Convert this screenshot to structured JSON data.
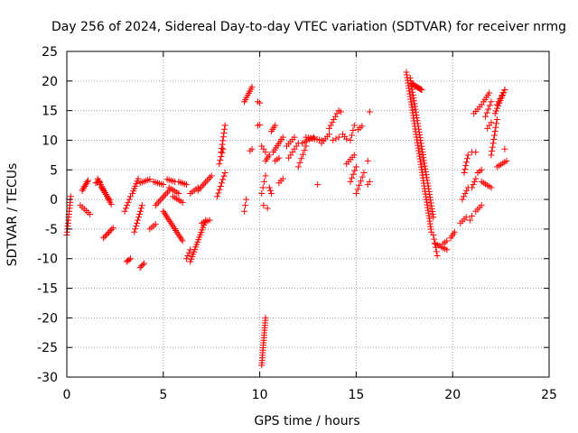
{
  "chart_data": {
    "type": "scatter",
    "title": "Day 256 of 2024, Sidereal Day-to-day VTEC variation (SDTVAR) for receiver nrmg",
    "xlabel": "GPS time / hours",
    "ylabel": "SDTVAR / TECUs",
    "xlim": [
      0,
      25
    ],
    "ylim": [
      -30,
      25
    ],
    "xticks": [
      0,
      5,
      10,
      15,
      20,
      25
    ],
    "yticks": [
      -30,
      -25,
      -20,
      -15,
      -10,
      -5,
      0,
      5,
      10,
      15,
      20,
      25
    ],
    "grid": true,
    "marker": "+",
    "color": "#ff0000",
    "segments": [
      {
        "x0": 0.0,
        "y0": -6.0,
        "x1": 0.2,
        "y1": 0.5,
        "n": 14
      },
      {
        "x0": 0.7,
        "y0": -1.0,
        "x1": 1.2,
        "y1": -2.5,
        "n": 6
      },
      {
        "x0": 0.8,
        "y0": 1.5,
        "x1": 1.1,
        "y1": 3.2,
        "n": 8
      },
      {
        "x0": 1.5,
        "y0": 2.8,
        "x1": 1.7,
        "y1": 3.0,
        "n": 4
      },
      {
        "x0": 1.6,
        "y0": 3.5,
        "x1": 2.3,
        "y1": -0.8,
        "n": 14
      },
      {
        "x0": 1.8,
        "y0": 2.0,
        "x1": 2.2,
        "y1": 0.0,
        "n": 8
      },
      {
        "x0": 1.9,
        "y0": -6.5,
        "x1": 2.4,
        "y1": -4.8,
        "n": 8
      },
      {
        "x0": 3.1,
        "y0": -10.5,
        "x1": 3.3,
        "y1": -10.0,
        "n": 4
      },
      {
        "x0": 3.0,
        "y0": -2.0,
        "x1": 3.3,
        "y1": 0.5,
        "n": 6
      },
      {
        "x0": 3.5,
        "y0": -5.5,
        "x1": 3.9,
        "y1": -1.0,
        "n": 10
      },
      {
        "x0": 3.4,
        "y0": 1.0,
        "x1": 3.7,
        "y1": 3.5,
        "n": 7
      },
      {
        "x0": 3.8,
        "y0": 2.8,
        "x1": 4.3,
        "y1": 3.4,
        "n": 6
      },
      {
        "x0": 3.8,
        "y0": -11.5,
        "x1": 4.0,
        "y1": -10.8,
        "n": 4
      },
      {
        "x0": 4.3,
        "y0": -5.0,
        "x1": 4.6,
        "y1": -4.2,
        "n": 4
      },
      {
        "x0": 4.5,
        "y0": 3.0,
        "x1": 5.0,
        "y1": 2.5,
        "n": 6
      },
      {
        "x0": 4.6,
        "y0": -1.0,
        "x1": 5.3,
        "y1": 1.5,
        "n": 10
      },
      {
        "x0": 5.0,
        "y0": -2.0,
        "x1": 6.0,
        "y1": -7.0,
        "n": 18
      },
      {
        "x0": 5.2,
        "y0": 3.4,
        "x1": 5.6,
        "y1": 3.0,
        "n": 5
      },
      {
        "x0": 5.3,
        "y0": 2.0,
        "x1": 5.8,
        "y1": 1.0,
        "n": 6
      },
      {
        "x0": 5.5,
        "y0": 0.5,
        "x1": 6.0,
        "y1": -0.5,
        "n": 6
      },
      {
        "x0": 5.8,
        "y0": 3.0,
        "x1": 6.2,
        "y1": 2.5,
        "n": 5
      },
      {
        "x0": 6.2,
        "y0": -10.0,
        "x1": 6.4,
        "y1": -8.5,
        "n": 4
      },
      {
        "x0": 6.4,
        "y0": -10.5,
        "x1": 7.2,
        "y1": -3.5,
        "n": 18
      },
      {
        "x0": 6.4,
        "y0": 1.0,
        "x1": 6.8,
        "y1": 2.0,
        "n": 5
      },
      {
        "x0": 6.8,
        "y0": 1.5,
        "x1": 7.5,
        "y1": 4.0,
        "n": 10
      },
      {
        "x0": 7.0,
        "y0": -4.0,
        "x1": 7.4,
        "y1": -3.5,
        "n": 5
      },
      {
        "x0": 7.8,
        "y0": 0.5,
        "x1": 8.2,
        "y1": 4.5,
        "n": 8
      },
      {
        "x0": 7.9,
        "y0": 6.0,
        "x1": 8.1,
        "y1": 8.5,
        "n": 5
      },
      {
        "x0": 8.0,
        "y0": 8.0,
        "x1": 8.2,
        "y1": 12.5,
        "n": 8
      },
      {
        "x0": 9.2,
        "y0": -2.0,
        "x1": 9.3,
        "y1": 0.0,
        "n": 3
      },
      {
        "x0": 9.2,
        "y0": 16.5,
        "x1": 9.6,
        "y1": 19.0,
        "n": 8
      },
      {
        "x0": 9.5,
        "y0": 8.2,
        "x1": 9.6,
        "y1": 8.5,
        "n": 2
      },
      {
        "x0": 9.9,
        "y0": 16.5,
        "x1": 10.0,
        "y1": 16.3,
        "n": 2
      },
      {
        "x0": 9.9,
        "y0": 12.5,
        "x1": 10.0,
        "y1": 12.6,
        "n": 2
      },
      {
        "x0": 10.1,
        "y0": -28.0,
        "x1": 10.3,
        "y1": -20.0,
        "n": 20
      },
      {
        "x0": 10.1,
        "y0": 9.0,
        "x1": 10.3,
        "y1": 8.0,
        "n": 3
      },
      {
        "x0": 10.1,
        "y0": 1.0,
        "x1": 10.3,
        "y1": 4.0,
        "n": 4
      },
      {
        "x0": 10.2,
        "y0": -1.0,
        "x1": 10.4,
        "y1": -1.5,
        "n": 2
      },
      {
        "x0": 10.3,
        "y0": 6.5,
        "x1": 10.5,
        "y1": 7.5,
        "n": 4
      },
      {
        "x0": 10.5,
        "y0": 2.0,
        "x1": 10.6,
        "y1": 1.0,
        "n": 3
      },
      {
        "x0": 10.6,
        "y0": 11.5,
        "x1": 10.8,
        "y1": 12.5,
        "n": 4
      },
      {
        "x0": 10.7,
        "y0": 8.0,
        "x1": 11.2,
        "y1": 10.5,
        "n": 8
      },
      {
        "x0": 10.8,
        "y0": 6.5,
        "x1": 11.0,
        "y1": 7.0,
        "n": 3
      },
      {
        "x0": 11.0,
        "y0": 2.8,
        "x1": 11.2,
        "y1": 3.5,
        "n": 3
      },
      {
        "x0": 11.4,
        "y0": 9.0,
        "x1": 11.8,
        "y1": 10.5,
        "n": 5
      },
      {
        "x0": 11.5,
        "y0": 7.0,
        "x1": 12.0,
        "y1": 9.5,
        "n": 6
      },
      {
        "x0": 12.0,
        "y0": 5.5,
        "x1": 12.4,
        "y1": 9.0,
        "n": 6
      },
      {
        "x0": 12.2,
        "y0": 9.5,
        "x1": 12.8,
        "y1": 10.5,
        "n": 6
      },
      {
        "x0": 12.4,
        "y0": 10.5,
        "x1": 13.2,
        "y1": 10.0,
        "n": 8
      },
      {
        "x0": 13.0,
        "y0": 2.5,
        "x1": 13.1,
        "y1": 2.5,
        "n": 1
      },
      {
        "x0": 13.2,
        "y0": 9.5,
        "x1": 13.6,
        "y1": 11.0,
        "n": 5
      },
      {
        "x0": 13.6,
        "y0": 12.0,
        "x1": 14.0,
        "y1": 14.5,
        "n": 6
      },
      {
        "x0": 13.8,
        "y0": 10.0,
        "x1": 14.1,
        "y1": 10.5,
        "n": 3
      },
      {
        "x0": 14.1,
        "y0": 15.0,
        "x1": 14.2,
        "y1": 14.8,
        "n": 2
      },
      {
        "x0": 14.3,
        "y0": 11.0,
        "x1": 14.5,
        "y1": 10.2,
        "n": 3
      },
      {
        "x0": 14.5,
        "y0": 6.0,
        "x1": 14.9,
        "y1": 7.5,
        "n": 5
      },
      {
        "x0": 14.7,
        "y0": 3.0,
        "x1": 15.0,
        "y1": 5.5,
        "n": 5
      },
      {
        "x0": 14.7,
        "y0": 10.0,
        "x1": 14.9,
        "y1": 12.5,
        "n": 4
      },
      {
        "x0": 15.0,
        "y0": 1.0,
        "x1": 15.4,
        "y1": 4.5,
        "n": 6
      },
      {
        "x0": 15.1,
        "y0": 11.8,
        "x1": 15.3,
        "y1": 12.4,
        "n": 3
      },
      {
        "x0": 15.6,
        "y0": 6.5,
        "x1": 15.7,
        "y1": 6.5,
        "n": 1
      },
      {
        "x0": 15.6,
        "y0": 2.5,
        "x1": 15.7,
        "y1": 3.0,
        "n": 2
      },
      {
        "x0": 15.7,
        "y0": 14.8,
        "x1": 15.8,
        "y1": 14.8,
        "n": 1
      },
      {
        "x0": 17.6,
        "y0": 21.5,
        "x1": 18.9,
        "y1": -5.5,
        "n": 60
      },
      {
        "x0": 17.8,
        "y0": 20.5,
        "x1": 19.0,
        "y1": -3.0,
        "n": 50
      },
      {
        "x0": 17.9,
        "y0": 19.5,
        "x1": 18.4,
        "y1": 18.5,
        "n": 12
      },
      {
        "x0": 19.0,
        "y0": -6.0,
        "x1": 19.2,
        "y1": -9.5,
        "n": 6
      },
      {
        "x0": 19.1,
        "y0": -7.5,
        "x1": 19.3,
        "y1": -7.8,
        "n": 3
      },
      {
        "x0": 19.4,
        "y0": -8.0,
        "x1": 19.7,
        "y1": -8.5,
        "n": 4
      },
      {
        "x0": 19.5,
        "y0": -7.5,
        "x1": 19.7,
        "y1": -7.0,
        "n": 3
      },
      {
        "x0": 19.9,
        "y0": -6.5,
        "x1": 20.1,
        "y1": -5.5,
        "n": 4
      },
      {
        "x0": 20.4,
        "y0": -4.0,
        "x1": 20.7,
        "y1": -3.0,
        "n": 4
      },
      {
        "x0": 20.5,
        "y0": 0.0,
        "x1": 20.8,
        "y1": 2.0,
        "n": 5
      },
      {
        "x0": 20.6,
        "y0": 4.5,
        "x1": 20.8,
        "y1": 7.5,
        "n": 6
      },
      {
        "x0": 20.9,
        "y0": -3.5,
        "x1": 21.0,
        "y1": -2.8,
        "n": 2
      },
      {
        "x0": 21.0,
        "y0": 2.0,
        "x1": 21.2,
        "y1": 3.5,
        "n": 4
      },
      {
        "x0": 21.0,
        "y0": 8.0,
        "x1": 21.2,
        "y1": 8.0,
        "n": 2
      },
      {
        "x0": 21.1,
        "y0": 14.5,
        "x1": 21.5,
        "y1": 16.0,
        "n": 5
      },
      {
        "x0": 21.2,
        "y0": -2.0,
        "x1": 21.5,
        "y1": -1.0,
        "n": 4
      },
      {
        "x0": 21.3,
        "y0": 4.5,
        "x1": 21.5,
        "y1": 5.0,
        "n": 3
      },
      {
        "x0": 21.5,
        "y0": 3.0,
        "x1": 22.0,
        "y1": 2.0,
        "n": 6
      },
      {
        "x0": 21.6,
        "y0": 16.5,
        "x1": 21.9,
        "y1": 18.0,
        "n": 5
      },
      {
        "x0": 21.7,
        "y0": 14.0,
        "x1": 22.0,
        "y1": 16.5,
        "n": 5
      },
      {
        "x0": 21.8,
        "y0": 12.0,
        "x1": 22.0,
        "y1": 13.0,
        "n": 3
      },
      {
        "x0": 22.0,
        "y0": 7.5,
        "x1": 22.3,
        "y1": 13.5,
        "n": 10
      },
      {
        "x0": 22.2,
        "y0": 14.5,
        "x1": 22.7,
        "y1": 18.5,
        "n": 10
      },
      {
        "x0": 22.3,
        "y0": 5.5,
        "x1": 22.8,
        "y1": 6.5,
        "n": 6
      },
      {
        "x0": 22.3,
        "y0": 16.0,
        "x1": 22.7,
        "y1": 18.5,
        "n": 6
      },
      {
        "x0": 22.7,
        "y0": 8.5,
        "x1": 22.8,
        "y1": 8.5,
        "n": 1
      }
    ]
  }
}
